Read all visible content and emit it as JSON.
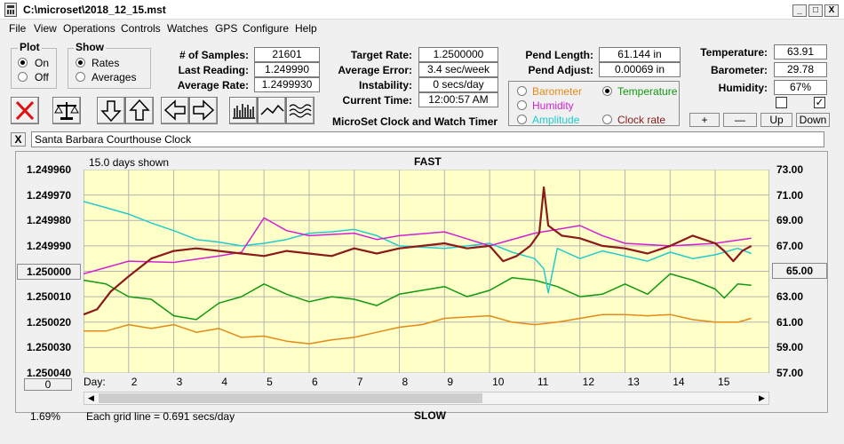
{
  "window": {
    "title": "C:\\microset\\2018_12_15.mst",
    "minimize": "_",
    "maximize": "□",
    "close": "X"
  },
  "menu": [
    "File",
    "View",
    "Operations",
    "Controls",
    "Watches",
    "GPS",
    "Configure",
    "Help"
  ],
  "plot_group": {
    "title": "Plot",
    "on": "On",
    "off": "Off",
    "selected": "On"
  },
  "show_group": {
    "title": "Show",
    "rates": "Rates",
    "averages": "Averages",
    "selected": "Rates"
  },
  "stats": {
    "samples_label": "# of Samples:",
    "samples": "21601",
    "last_label": "Last Reading:",
    "last": "1.249990",
    "avg_label": "Average Rate:",
    "avg": "1.2499930"
  },
  "rates": {
    "target_label": "Target Rate:",
    "target": "1.2500000",
    "error_label": "Average Error:",
    "error": "3.4 sec/week",
    "instab_label": "Instability:",
    "instab": "0 secs/day",
    "time_label": "Current Time:",
    "time": "12:00:57 AM"
  },
  "app_caption": "MicroSet Clock and Watch Timer",
  "pendulum": {
    "length_label": "Pend Length:",
    "length": "61.144 in",
    "adjust_label": "Pend Adjust:",
    "adjust": "0.00069 in"
  },
  "sensor_select": {
    "barometer": "Barometer",
    "temperature": "Temperature",
    "humidity": "Humidity",
    "amplitude": "Amplitude",
    "clock_rate": "Clock rate",
    "selected": "Temperature",
    "colors": {
      "barometer": "#e38a17",
      "temperature": "#119911",
      "humidity": "#d21fd2",
      "amplitude": "#22cccc",
      "clock_rate": "#8b1a1a"
    }
  },
  "env": {
    "temp_label": "Temperature:",
    "temp": "63.91",
    "baro_label": "Barometer:",
    "baro": "29.78",
    "hum_label": "Humidity:",
    "hum": "67%",
    "check1": false,
    "check2": true
  },
  "scale_buttons": {
    "plus": "+",
    "minus": "—",
    "up": "Up",
    "down": "Down"
  },
  "watch_name": "Santa Barbara Courthouse Clock",
  "watch_clear": "X",
  "chart": {
    "days_shown": "15.0 days shown",
    "top_label": "FAST",
    "bottom_label": "SLOW",
    "grid_note": "Each grid line = 0.691 secs/day",
    "left_pct": "1.69%",
    "left_center_button": "1.250000",
    "right_center_button": "65.00",
    "bottom_left_button": "0",
    "day_label": "Day:"
  },
  "chart_data": {
    "type": "line",
    "x_label": "Day:",
    "x_ticks": [
      "2",
      "3",
      "4",
      "5",
      "6",
      "7",
      "8",
      "9",
      "10",
      "11",
      "12",
      "13",
      "14",
      "15"
    ],
    "x_range": [
      1,
      16.2
    ],
    "left_axis": {
      "ticks": [
        "1.249960",
        "1.249970",
        "1.249980",
        "1.249990",
        "1.250000",
        "1.250010",
        "1.250020",
        "1.250030",
        "1.250040"
      ],
      "range": [
        1.24996,
        1.25004
      ],
      "inverted": true
    },
    "right_axis": {
      "ticks": [
        "73.00",
        "71.00",
        "69.00",
        "67.00",
        "65.00",
        "63.00",
        "61.00",
        "59.00",
        "57.00"
      ],
      "range": [
        57,
        73
      ]
    },
    "grid": true,
    "series": [
      {
        "name": "Clock rate",
        "color": "#8b1a1a",
        "axis": "left",
        "x": [
          1,
          1.3,
          1.6,
          2,
          2.5,
          3,
          3.5,
          4,
          4.5,
          5,
          5.5,
          6,
          6.5,
          7,
          7.5,
          8,
          8.5,
          9,
          9.5,
          10,
          10.3,
          10.6,
          10.9,
          11.1,
          11.2,
          11.3,
          11.6,
          12,
          12.5,
          13,
          13.5,
          14,
          14.5,
          15,
          15.2,
          15.4,
          15.6,
          15.8
        ],
        "y": [
          1.250017,
          1.250015,
          1.250008,
          1.250002,
          1.249995,
          1.249992,
          1.249991,
          1.249992,
          1.249993,
          1.249994,
          1.249992,
          1.249993,
          1.249994,
          1.249991,
          1.249993,
          1.249991,
          1.24999,
          1.249989,
          1.249991,
          1.24999,
          1.249996,
          1.249994,
          1.24999,
          1.249985,
          1.249967,
          1.249982,
          1.249986,
          1.249987,
          1.24999,
          1.249991,
          1.249993,
          1.24999,
          1.249986,
          1.249989,
          1.249992,
          1.249996,
          1.249992,
          1.24999
        ]
      },
      {
        "name": "Humidity",
        "color": "#d21fd2",
        "axis": "right",
        "x": [
          1,
          2,
          3,
          4,
          4.5,
          5,
          5.5,
          6,
          7,
          7.5,
          8,
          9,
          10,
          11,
          12,
          12.5,
          13,
          14,
          15,
          15.8
        ],
        "y": [
          64.8,
          65.8,
          65.7,
          66.2,
          66.5,
          69.2,
          68.2,
          67.8,
          68.0,
          67.5,
          67.8,
          68.1,
          67.0,
          68.0,
          68.6,
          67.8,
          67.2,
          67.0,
          67.2,
          67.6
        ]
      },
      {
        "name": "Amplitude",
        "color": "#22cccc",
        "axis": "right",
        "x": [
          1,
          1.5,
          2,
          2.5,
          3,
          3.5,
          4,
          4.5,
          5,
          5.5,
          6,
          6.5,
          7,
          7.5,
          8,
          9,
          10,
          10.5,
          11,
          11.2,
          11.3,
          11.5,
          12,
          12.5,
          13,
          13.5,
          14,
          14.5,
          15,
          15.5,
          15.8
        ],
        "y": [
          70.5,
          70.0,
          69.5,
          68.8,
          68.2,
          67.5,
          67.3,
          67.0,
          67.2,
          67.5,
          68.0,
          68.1,
          68.3,
          67.8,
          67.0,
          66.8,
          67.2,
          66.5,
          66.0,
          65.2,
          63.3,
          66.8,
          66.0,
          66.6,
          66.2,
          65.8,
          66.5,
          66.0,
          66.3,
          66.8,
          66.4
        ]
      },
      {
        "name": "Temperature",
        "color": "#119911",
        "axis": "right",
        "x": [
          1,
          1.5,
          2,
          2.5,
          3,
          3.5,
          4,
          4.5,
          5,
          5.5,
          6,
          6.5,
          7,
          7.5,
          8,
          8.5,
          9,
          9.5,
          10,
          10.5,
          11,
          11.5,
          12,
          12.5,
          13,
          13.5,
          14,
          14.5,
          15,
          15.2,
          15.5,
          15.8
        ],
        "y": [
          64.3,
          64.0,
          63.0,
          62.8,
          61.5,
          61.2,
          62.5,
          63.0,
          64.0,
          63.2,
          62.6,
          63.0,
          62.8,
          62.3,
          63.2,
          63.5,
          63.8,
          63.0,
          63.5,
          64.5,
          64.3,
          63.8,
          63.0,
          63.2,
          64.0,
          63.2,
          64.8,
          64.3,
          63.6,
          62.9,
          64.0,
          63.9
        ]
      },
      {
        "name": "Barometer",
        "color": "#e38a17",
        "axis": "right",
        "x": [
          1,
          1.5,
          2,
          2.5,
          3,
          3.5,
          4,
          4.5,
          5,
          5.5,
          6,
          6.5,
          7,
          7.5,
          8,
          8.5,
          9,
          9.5,
          10,
          10.5,
          11,
          11.5,
          12,
          12.5,
          13,
          13.5,
          14,
          14.5,
          15,
          15.5,
          15.8
        ],
        "y": [
          60.3,
          60.3,
          60.8,
          60.5,
          60.8,
          60.2,
          60.5,
          59.8,
          59.9,
          59.5,
          59.3,
          59.6,
          59.8,
          60.2,
          60.6,
          60.8,
          61.3,
          61.4,
          61.5,
          61.0,
          60.8,
          61.0,
          61.3,
          61.6,
          61.6,
          61.5,
          61.6,
          61.2,
          61.0,
          61.0,
          61.3
        ]
      }
    ]
  }
}
